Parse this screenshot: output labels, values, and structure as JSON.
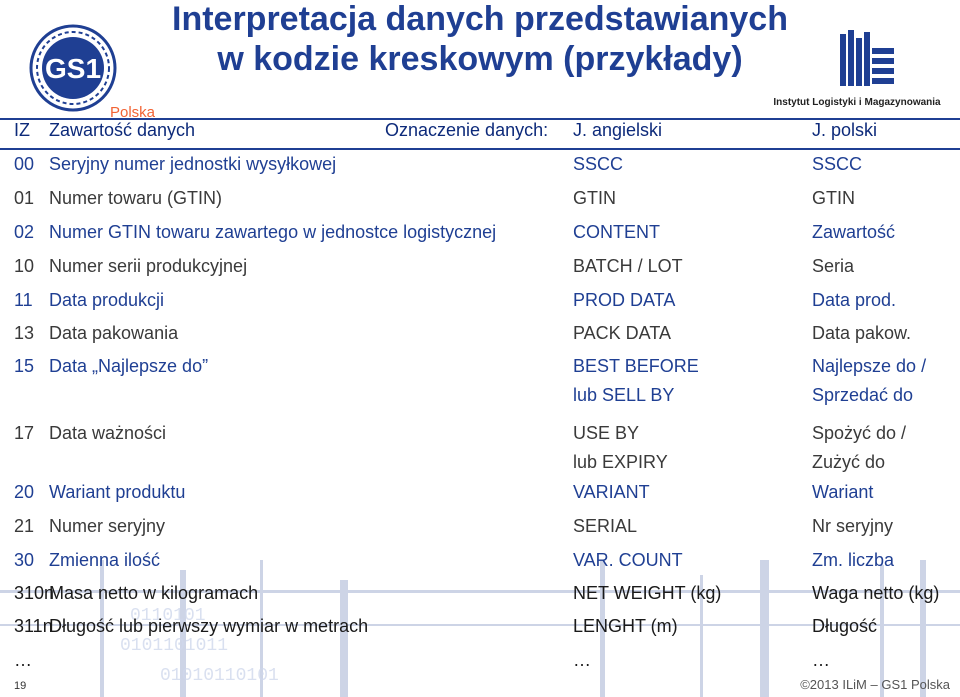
{
  "title": {
    "line1": "Interpretacja danych przedstawianych",
    "line2": "w kodzie kreskowym (przykłady)"
  },
  "logos": {
    "gs1_text": "GS1",
    "gs1_sub": "Polska",
    "ilim_caption": "Instytut Logistyki i Magazynowania"
  },
  "header": {
    "ai": "IZ",
    "content": "Zawartość danych",
    "designation": "Oznaczenie danych:",
    "english": "J. angielski",
    "polish": "J. polski"
  },
  "rows": [
    {
      "ai": "00",
      "desc": "Seryjny numer jednostki wysyłkowej",
      "en": "SSCC",
      "pl": "SSCC"
    },
    {
      "ai": "01",
      "desc": "Numer towaru (GTIN)",
      "en": "GTIN",
      "pl": "GTIN"
    },
    {
      "ai": "02",
      "desc": "Numer GTIN towaru zawartego w jednostce logistycznej",
      "en": "CONTENT",
      "pl": "Zawartość"
    },
    {
      "ai": "10",
      "desc": "Numer serii produkcyjnej",
      "en": "BATCH / LOT",
      "pl": "Seria"
    },
    {
      "ai": "11",
      "desc": "Data produkcji",
      "en": "PROD DATA",
      "pl": "Data prod."
    },
    {
      "ai": "13",
      "desc": "Data pakowania",
      "en": "PACK DATA",
      "pl": "Data pakow."
    },
    {
      "ai": "15",
      "desc": "Data „Najlepsze do”",
      "en": "BEST BEFORE",
      "en2": "lub SELL BY",
      "pl": "Najlepsze do /",
      "pl2": "Sprzedać do"
    },
    {
      "ai": "17",
      "desc": "Data ważności",
      "en": "USE BY",
      "en2": "lub EXPIRY",
      "pl": "Spożyć do /",
      "pl2": "Zużyć do"
    },
    {
      "ai": "20",
      "desc": "Wariant produktu",
      "en": "VARIANT",
      "pl": "Wariant"
    },
    {
      "ai": "21",
      "desc": "Numer seryjny",
      "en": "SERIAL",
      "pl": "Nr seryjny"
    },
    {
      "ai": "30",
      "desc": "Zmienna ilość",
      "en": "VAR. COUNT",
      "pl": "Zm. liczba"
    },
    {
      "ai": "310n",
      "desc": "Masa netto w kilogramach",
      "en": "NET WEIGHT (kg)",
      "pl": "Waga netto (kg)"
    },
    {
      "ai": "311n",
      "desc": "Długość lub pierwszy wymiar w metrach",
      "en": "LENGHT (m)",
      "pl": "Długość"
    },
    {
      "ai": "…",
      "desc": "",
      "en": "…",
      "pl": "…"
    }
  ],
  "footer": {
    "page": "19",
    "copyright": "©2013 ILiM – GS1 Polska"
  },
  "colors": {
    "title": "#1f3f93",
    "row_blue": "#1f3f93",
    "row_grey": "#3a3a3a",
    "gs1_orange": "#f26334"
  }
}
